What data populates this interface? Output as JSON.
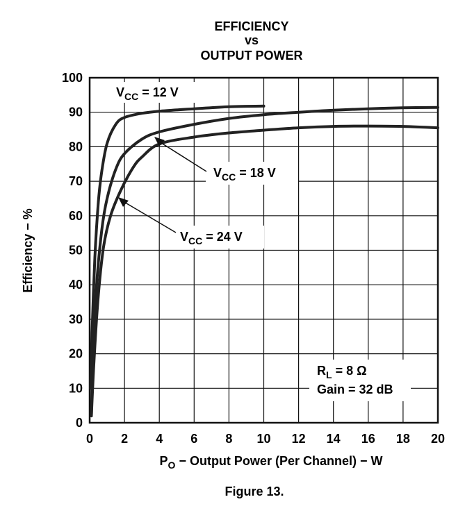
{
  "chart_data": {
    "type": "line",
    "title": [
      "EFFICIENCY",
      "vs",
      "OUTPUT POWER"
    ],
    "xlabel": {
      "main": "P",
      "sub": "O",
      "rest": " − Output Power (Per Channel) − W"
    },
    "ylabel": "Efficiency − %",
    "xlim": [
      0,
      20
    ],
    "ylim": [
      0,
      100
    ],
    "xticks": [
      0,
      2,
      4,
      6,
      8,
      10,
      12,
      14,
      16,
      18,
      20
    ],
    "yticks": [
      0,
      10,
      20,
      30,
      40,
      50,
      60,
      70,
      80,
      90,
      100
    ],
    "grid": true,
    "series": [
      {
        "name": "VCC = 12 V",
        "x": [
          0.05,
          0.15,
          0.3,
          0.5,
          0.7,
          1.0,
          1.5,
          2.0,
          3.0,
          4.0,
          6.0,
          8.0,
          10.0
        ],
        "y": [
          10,
          28,
          48,
          64,
          73,
          81,
          86.5,
          88.5,
          89.7,
          90.3,
          91.0,
          91.6,
          91.8
        ]
      },
      {
        "name": "VCC = 18 V",
        "x": [
          0.1,
          0.2,
          0.4,
          0.7,
          1.0,
          1.5,
          2.0,
          3.0,
          4.0,
          6.0,
          8.0,
          10.0,
          12.0,
          14.0,
          16.0,
          18.0,
          20.0
        ],
        "y": [
          2,
          20,
          40,
          56,
          65,
          73.5,
          78,
          82.2,
          84.3,
          86.5,
          88.2,
          89.3,
          90.0,
          90.6,
          91.0,
          91.3,
          91.4
        ]
      },
      {
        "name": "VCC = 24 V",
        "x": [
          0.1,
          0.25,
          0.5,
          0.8,
          1.2,
          1.8,
          2.5,
          3.0,
          4.0,
          6.0,
          8.0,
          10.0,
          12.0,
          14.0,
          16.0,
          18.0,
          20.0
        ],
        "y": [
          2,
          18,
          37,
          51,
          60,
          67.5,
          74,
          77,
          80.8,
          82.8,
          84.0,
          84.8,
          85.5,
          85.9,
          86.0,
          85.9,
          85.5
        ]
      }
    ],
    "annotations": [
      {
        "main": "V",
        "sub": "CC",
        "rest": " = 12 V"
      },
      {
        "main": "V",
        "sub": "CC",
        "rest": "  = 18 V"
      },
      {
        "main": "V",
        "sub": "CC",
        "rest": " = 24 V"
      }
    ],
    "conditions": [
      {
        "main": "R",
        "sub": "L",
        "rest": " = 8 Ω"
      },
      {
        "main": "Gain = 32 dB",
        "sub": "",
        "rest": ""
      }
    ]
  },
  "caption": "Figure 13."
}
